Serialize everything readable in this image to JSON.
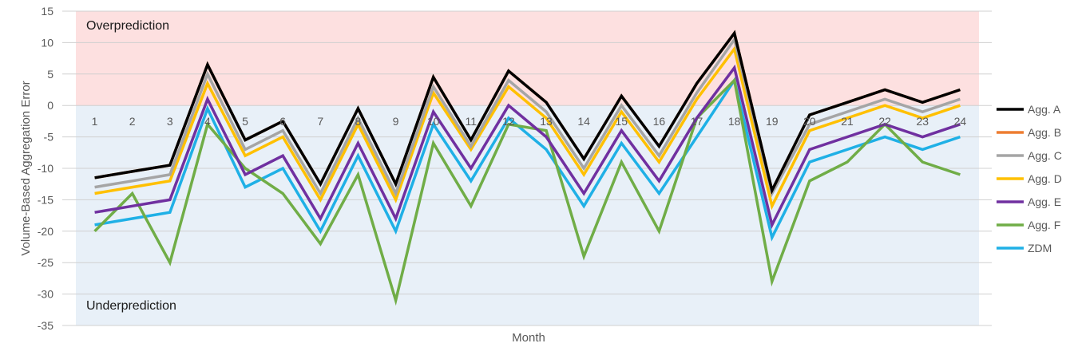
{
  "chart_data": {
    "type": "line",
    "xlabel": "Month",
    "ylabel": "Volume-Based Aggregation Error",
    "ylim": [
      -35,
      15
    ],
    "yticks": [
      15,
      10,
      5,
      0,
      -5,
      -10,
      -15,
      -20,
      -25,
      -30,
      -35
    ],
    "grid": true,
    "legend": "right",
    "x": [
      "1",
      "2",
      "3",
      "4",
      "5",
      "6",
      "7",
      "8",
      "9",
      "10",
      "11",
      "12",
      "13",
      "14",
      "15",
      "16",
      "17",
      "18",
      "19",
      "20",
      "21",
      "22",
      "23",
      "24"
    ],
    "regions": [
      {
        "label": "Overprediction",
        "from": 0,
        "to": 15,
        "color": "#fde0e0"
      },
      {
        "label": "Underprediction",
        "from": -35,
        "to": 0,
        "color": "#e8f0f8"
      }
    ],
    "series": [
      {
        "name": "Agg. A",
        "color": "#000000",
        "values": [
          -11.5,
          -10.5,
          -9.5,
          6.5,
          -5.5,
          -2.5,
          -12.5,
          -0.5,
          -12.5,
          4.5,
          -5.5,
          5.5,
          0.5,
          -8.5,
          1.5,
          -6.5,
          3.5,
          11.5,
          -13.5,
          -1.5,
          0.5,
          2.5,
          0.5,
          2.5
        ]
      },
      {
        "name": "Agg. B",
        "color": "#ed7d31",
        "values": [
          -11.5,
          -10.5,
          -9.5,
          6.5,
          -5.5,
          -2.5,
          -12.5,
          -0.5,
          -12.5,
          4.5,
          -5.5,
          5.5,
          0.5,
          -8.5,
          1.5,
          -6.5,
          3.5,
          11.5,
          -13.5,
          -1.5,
          0.5,
          2.5,
          0.5,
          2.5
        ]
      },
      {
        "name": "Agg. C",
        "color": "#a5a5a5",
        "values": [
          -13,
          -12,
          -11,
          5,
          -7,
          -4,
          -14,
          -2,
          -14,
          3,
          -6.5,
          4,
          -1,
          -10,
          0,
          -8,
          2,
          10.5,
          -14,
          -3,
          -1,
          1,
          -1,
          1
        ]
      },
      {
        "name": "Agg. D",
        "color": "#ffc000",
        "values": [
          -14,
          -13,
          -12,
          3.5,
          -8,
          -5,
          -15,
          -3,
          -15,
          2,
          -7,
          3,
          -2,
          -11,
          -1,
          -9,
          1,
          9,
          -16,
          -4,
          -2,
          0,
          -2,
          0
        ]
      },
      {
        "name": "Agg. E",
        "color": "#7030a0",
        "values": [
          -17,
          -16,
          -15,
          1,
          -11,
          -8,
          -18,
          -6,
          -18,
          -1,
          -10,
          0,
          -5,
          -14,
          -4,
          -12,
          -2,
          6,
          -19,
          -7,
          -5,
          -3,
          -5,
          -3
        ]
      },
      {
        "name": "Agg. F",
        "color": "#70ad47",
        "values": [
          -20,
          -14,
          -25,
          -3,
          -10,
          -14,
          -22,
          -11,
          -31,
          -6,
          -16,
          -3,
          -4,
          -24,
          -9,
          -20,
          -2,
          4,
          -28,
          -12,
          -9,
          -3,
          -9,
          -11
        ]
      },
      {
        "name": "ZDM",
        "color": "#1fb0e6",
        "values": [
          -19,
          -18,
          -17,
          -0.5,
          -13,
          -10,
          -20,
          -8,
          -20,
          -3,
          -12,
          -2,
          -7,
          -16,
          -6,
          -14,
          -5,
          4,
          -21,
          -9,
          -7,
          -5,
          -7,
          -5
        ]
      }
    ]
  }
}
